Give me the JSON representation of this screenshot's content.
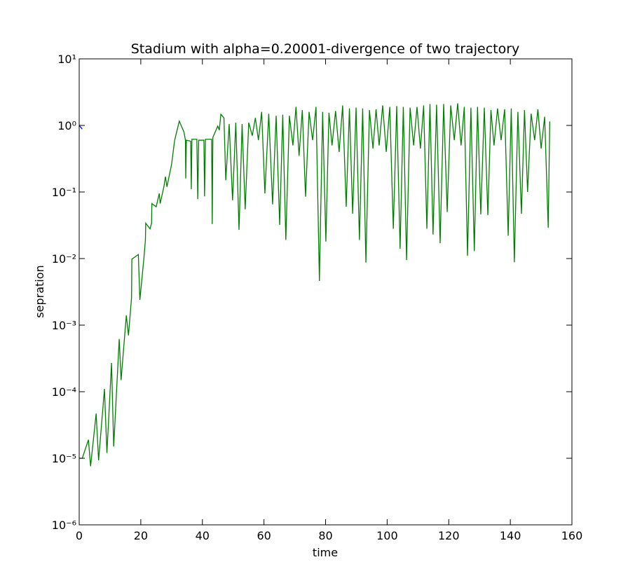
{
  "chart_data": {
    "type": "line",
    "title": "Stadium with alpha=0.20001-divergence of two trajectory",
    "xlabel": "time",
    "ylabel": "sepration",
    "yscale": "log",
    "xlim": [
      0,
      160
    ],
    "xticks": [
      0,
      20,
      40,
      60,
      80,
      100,
      120,
      140,
      160
    ],
    "ylim": [
      1e-06,
      10
    ],
    "yticks": [
      {
        "value": 1e-06,
        "label": "10⁻⁶"
      },
      {
        "value": 1e-05,
        "label": "10⁻⁵"
      },
      {
        "value": 0.0001,
        "label": "10⁻⁴"
      },
      {
        "value": 0.001,
        "label": "10⁻³"
      },
      {
        "value": 0.01,
        "label": "10⁻²"
      },
      {
        "value": 0.1,
        "label": "10⁻¹"
      },
      {
        "value": 1,
        "label": "10⁰"
      },
      {
        "value": 10,
        "label": "10¹"
      }
    ],
    "series": [
      {
        "color": "#0000ff",
        "x": [
          0,
          1
        ],
        "values": [
          1,
          0.88
        ]
      },
      {
        "color": "#008000",
        "x": [
          0,
          1,
          3,
          3.7,
          5.5,
          6.3,
          8.2,
          9,
          10.5,
          11.2,
          13,
          13.6,
          15.3,
          16,
          17,
          17.1,
          19.2,
          19.7,
          21,
          21.5,
          21.6,
          23,
          23.5,
          23.6,
          25,
          26,
          26.3,
          27.5,
          28,
          28.5,
          30,
          31,
          32.5,
          34,
          34.5,
          34.6,
          34.8,
          36.2,
          36.4,
          36.6,
          38.2,
          38.5,
          38.8,
          40.5,
          40.7,
          41,
          43,
          43.2,
          43.4,
          45,
          45.5,
          46,
          47,
          47.6,
          48.7,
          49.8,
          50.85,
          51.9,
          52.9,
          53.9,
          55.05,
          56.2,
          57.2,
          58.2,
          59.25,
          60.3,
          61.55,
          62.8,
          63.95,
          65.1,
          66.1,
          67.1,
          68.25,
          69.4,
          70.4,
          71.4,
          72.45,
          73.5,
          74.65,
          75.8,
          76.9,
          78.0,
          79.05,
          80.1,
          81.1,
          82.1,
          83.25,
          84.4,
          85.55,
          86.7,
          87.75,
          88.8,
          89.9,
          91.0,
          92.05,
          93.1,
          94.25,
          95.4,
          96.4,
          97.4,
          98.55,
          99.7,
          100.85,
          102.0,
          103.1,
          104.2,
          105.25,
          106.3,
          107.45,
          108.6,
          109.7,
          110.8,
          111.85,
          112.9,
          113.9,
          114.9,
          116.05,
          117.2,
          118.35,
          119.5,
          120.65,
          121.8,
          122.9,
          124.0,
          125.05,
          126.1,
          127.2,
          128.3,
          129.35,
          130.4,
          131.55,
          132.7,
          133.7,
          134.7,
          135.85,
          137.0,
          138.15,
          139.3,
          140.3,
          141.3,
          142.45,
          143.6,
          144.6,
          145.6,
          146.75,
          147.9,
          148.95,
          150.0,
          151.15,
          152.3,
          152.8
        ],
        "values": [
          1e-05,
          1e-05,
          1.9e-05,
          7.6e-06,
          4.7e-05,
          9.3e-06,
          0.00011,
          1.2e-05,
          0.00027,
          1.5e-05,
          0.00062,
          0.00015,
          0.0014,
          0.0007,
          0.0026,
          0.0098,
          0.0115,
          0.0024,
          0.01,
          0.019,
          0.034,
          0.028,
          0.034,
          0.067,
          0.06,
          0.095,
          0.067,
          0.12,
          0.17,
          0.12,
          0.26,
          0.6,
          1.16,
          0.8,
          0.6,
          0.16,
          0.6,
          0.58,
          0.11,
          0.62,
          0.62,
          0.078,
          0.6,
          0.6,
          0.086,
          0.62,
          0.62,
          0.033,
          0.66,
          0.98,
          0.85,
          1.47,
          1.3,
          0.15,
          1.05,
          0.075,
          1.1,
          0.027,
          1.05,
          0.055,
          1.1,
          0.7,
          1.3,
          0.6,
          1.6,
          0.095,
          1.5,
          0.065,
          1.4,
          0.032,
          1.45,
          0.019,
          1.4,
          0.5,
          1.9,
          0.35,
          1.7,
          0.085,
          1.6,
          0.6,
          1.9,
          0.0046,
          1.6,
          0.018,
          1.55,
          0.5,
          1.65,
          0.4,
          2.0,
          0.06,
          1.8,
          0.047,
          1.85,
          0.019,
          1.8,
          0.0087,
          1.7,
          0.45,
          1.75,
          0.5,
          2.0,
          0.4,
          1.9,
          0.028,
          1.95,
          0.014,
          1.9,
          0.0095,
          1.85,
          0.5,
          1.9,
          0.45,
          2.0,
          0.028,
          2.1,
          0.023,
          2.05,
          0.017,
          2.1,
          0.05,
          2.0,
          0.6,
          2.15,
          0.5,
          1.9,
          0.011,
          1.85,
          0.013,
          1.9,
          0.046,
          1.85,
          0.045,
          1.7,
          0.5,
          1.8,
          0.6,
          1.75,
          0.022,
          1.8,
          0.0088,
          1.6,
          0.047,
          1.7,
          0.1,
          1.5,
          0.6,
          1.75,
          0.45,
          1.35,
          0.029,
          1.15
        ]
      }
    ]
  }
}
